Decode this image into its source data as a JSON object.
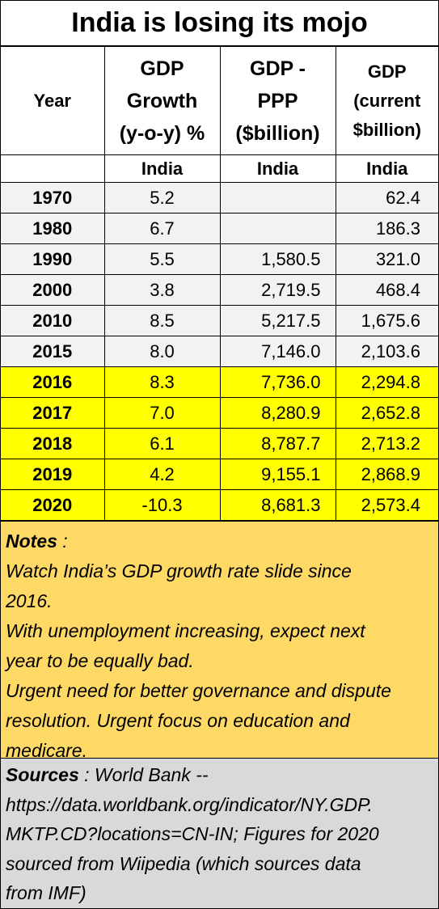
{
  "title": "India is losing its mojo",
  "headers": {
    "year": "Year",
    "growth": "GDP\nGrowth\n(y-o-y) %",
    "ppp": "GDP -\nPPP\n($billion)",
    "current": "GDP\n(current\n$billion)"
  },
  "subheaders": {
    "year": "",
    "growth": "India",
    "ppp": "India",
    "current": "India"
  },
  "rows": [
    {
      "year": "1970",
      "growth": "5.2",
      "ppp": "",
      "current": "62.4"
    },
    {
      "year": "1980",
      "growth": "6.7",
      "ppp": "",
      "current": "186.3"
    },
    {
      "year": "1990",
      "growth": "5.5",
      "ppp": "1,580.5",
      "current": "321.0"
    },
    {
      "year": "2000",
      "growth": "3.8",
      "ppp": "2,719.5",
      "current": "468.4"
    },
    {
      "year": "2010",
      "growth": "8.5",
      "ppp": "5,217.5",
      "current": "1,675.6"
    },
    {
      "year": "2015",
      "growth": "8.0",
      "ppp": "7,146.0",
      "current": "2,103.6"
    },
    {
      "year": "2016",
      "growth": "8.3",
      "ppp": "7,736.0",
      "current": "2,294.8"
    },
    {
      "year": "2017",
      "growth": "7.0",
      "ppp": "8,280.9",
      "current": "2,652.8"
    },
    {
      "year": "2018",
      "growth": "6.1",
      "ppp": "8,787.7",
      "current": "2,713.2"
    },
    {
      "year": "2019",
      "growth": "4.2",
      "ppp": "9,155.1",
      "current": "2,868.9"
    },
    {
      "year": "2020",
      "growth": "-10.3",
      "ppp": "8,681.3",
      "current": "2,573.4"
    }
  ],
  "notes": {
    "label": "Notes",
    "sep": " :",
    "lines": [
      "Watch India’s GDP growth rate slide since",
      "2016.",
      "With unemployment increasing, expect next",
      "year to be equally bad.",
      "Urgent need for better governance and dispute",
      "resolution. Urgent focus on education and",
      "medicare."
    ]
  },
  "sources": {
    "label": "Sources",
    "first": " : World Bank --",
    "lines": [
      "https://data.worldbank.org/indicator/NY.GDP.",
      "MKTP.CD?locations=CN-IN; Figures for 2020",
      "sourced from Wiipedia (which sources data",
      "from IMF)"
    ]
  },
  "colors": {
    "highlight": "#ffff00",
    "notes_bg": "#ffd966",
    "sources_bg": "#d9d9d9",
    "row_bg": "#f2f2f2"
  }
}
